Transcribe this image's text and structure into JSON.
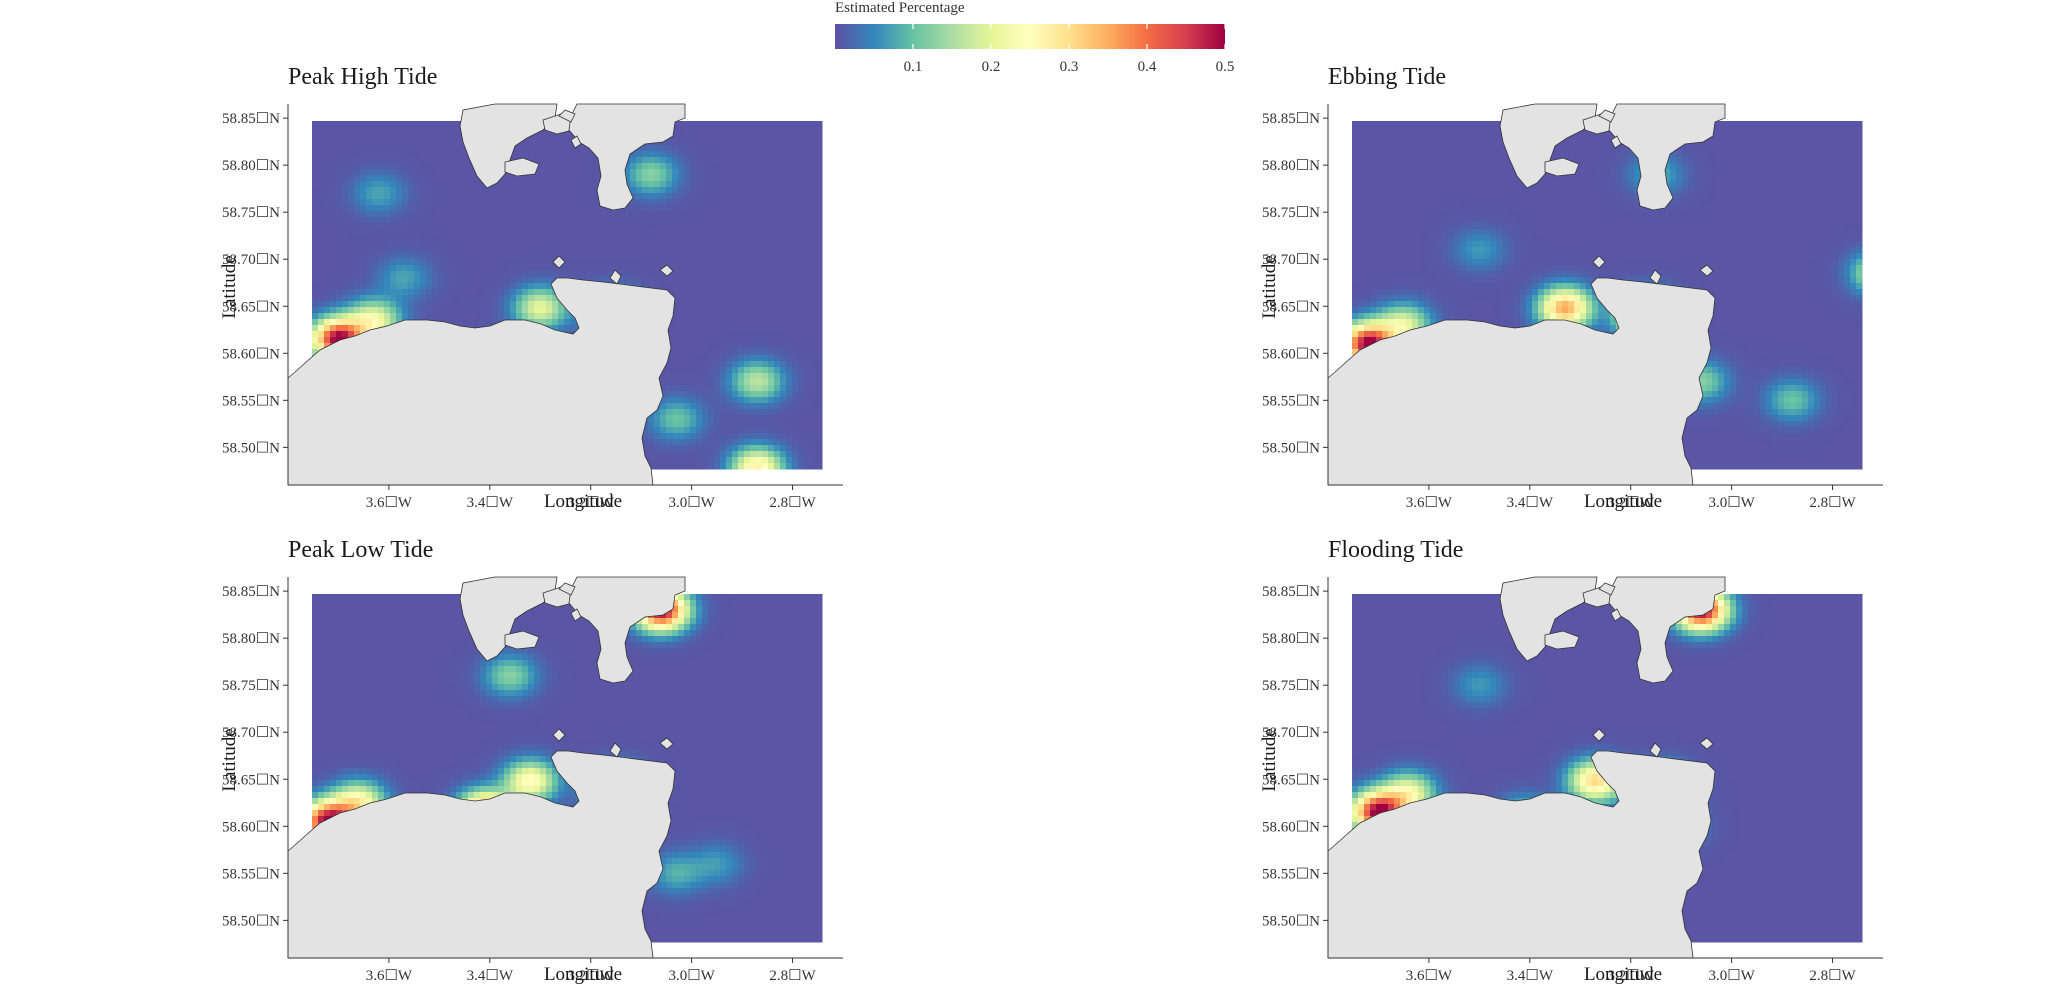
{
  "legend": {
    "title": "Estimated Percentage",
    "ticks": [
      0.1,
      0.2,
      0.3,
      0.4,
      0.5
    ],
    "range": [
      0.0,
      0.5
    ],
    "colors": [
      "#5e4fa2",
      "#3288bd",
      "#66c2a5",
      "#abdda4",
      "#e6f598",
      "#ffffbf",
      "#fee08b",
      "#fdae61",
      "#f46d43",
      "#d53e4f",
      "#9e0142"
    ]
  },
  "axes": {
    "xlabel": "Longitude",
    "ylabel": "Latitude",
    "x_ticks": [
      "3.6☐W",
      "3.4☐W",
      "3.2☐W",
      "3.0☐W",
      "2.8☐W"
    ],
    "y_ticks": [
      "58.85☐N",
      "58.80☐N",
      "58.75☐N",
      "58.70☐N",
      "58.65☐N",
      "58.60☐N",
      "58.55☐N",
      "58.50☐N"
    ],
    "x_tick_values": [
      -3.6,
      -3.4,
      -3.2,
      -3.0,
      -2.8
    ],
    "y_tick_values": [
      58.85,
      58.8,
      58.75,
      58.7,
      58.65,
      58.6,
      58.55,
      58.5
    ],
    "xlim": [
      -3.8,
      -2.7
    ],
    "ylim": [
      58.46,
      58.865
    ]
  },
  "colors": {
    "land": "#e3e3e3",
    "coast": "#333333",
    "sea_low": "#5e4fa2"
  },
  "panels": [
    {
      "title": "Peak High Tide",
      "hotspots": [
        [
          -3.7,
          58.615,
          0.5
        ],
        [
          -3.63,
          58.635,
          0.22
        ],
        [
          -3.3,
          58.648,
          0.2
        ],
        [
          -3.16,
          58.645,
          0.18
        ],
        [
          -2.87,
          58.57,
          0.16
        ],
        [
          -2.87,
          58.478,
          0.27
        ],
        [
          -3.08,
          58.79,
          0.12
        ],
        [
          -3.62,
          58.77,
          0.07
        ],
        [
          -3.57,
          58.68,
          0.07
        ],
        [
          -3.03,
          58.53,
          0.1
        ]
      ]
    },
    {
      "title": "Ebbing Tide",
      "hotspots": [
        [
          -3.72,
          58.61,
          0.5
        ],
        [
          -3.65,
          58.63,
          0.2
        ],
        [
          -3.33,
          58.648,
          0.35
        ],
        [
          -3.17,
          58.64,
          0.45
        ],
        [
          -2.71,
          58.685,
          0.18
        ],
        [
          -3.06,
          58.57,
          0.12
        ],
        [
          -2.88,
          58.55,
          0.1
        ],
        [
          -3.15,
          58.79,
          0.08
        ],
        [
          -3.5,
          58.71,
          0.06
        ]
      ]
    },
    {
      "title": "Peak Low Tide",
      "hotspots": [
        [
          -3.72,
          58.605,
          0.5
        ],
        [
          -3.66,
          58.625,
          0.25
        ],
        [
          -3.06,
          58.83,
          0.5
        ],
        [
          -3.36,
          58.76,
          0.12
        ],
        [
          -3.32,
          58.648,
          0.25
        ],
        [
          -3.15,
          58.64,
          0.3
        ],
        [
          -3.41,
          58.615,
          0.4
        ],
        [
          -3.03,
          58.55,
          0.08
        ],
        [
          -2.95,
          58.56,
          0.06
        ]
      ]
    },
    {
      "title": "Flooding Tide",
      "hotspots": [
        [
          -3.7,
          58.615,
          0.5
        ],
        [
          -3.64,
          58.635,
          0.22
        ],
        [
          -3.06,
          58.83,
          0.5
        ],
        [
          -3.27,
          58.648,
          0.3
        ],
        [
          -3.14,
          58.64,
          0.35
        ],
        [
          -3.5,
          58.75,
          0.06
        ],
        [
          -3.41,
          58.61,
          0.12
        ],
        [
          -3.1,
          58.6,
          0.05
        ]
      ]
    }
  ]
}
